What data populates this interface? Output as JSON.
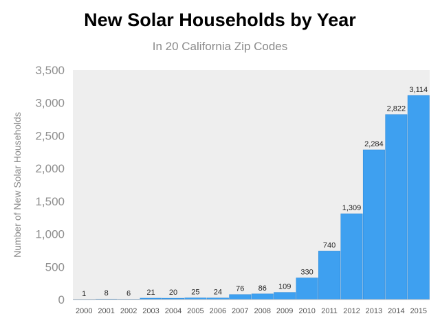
{
  "chart_data": {
    "type": "bar",
    "title": "New Solar Households by Year",
    "subtitle": "In 20 California Zip Codes",
    "xlabel": "",
    "ylabel": "Number of New Solar Households",
    "categories": [
      "2000",
      "2001",
      "2002",
      "2003",
      "2004",
      "2005",
      "2006",
      "2007",
      "2008",
      "2009",
      "2010",
      "2011",
      "2012",
      "2013",
      "2014",
      "2015"
    ],
    "values": [
      1,
      8,
      6,
      21,
      20,
      25,
      24,
      76,
      86,
      109,
      330,
      740,
      1309,
      2284,
      2822,
      3114
    ],
    "data_labels": [
      "1",
      "8",
      "6",
      "21",
      "20",
      "25",
      "24",
      "76",
      "86",
      "109",
      "330",
      "740",
      "1,309",
      "2,284",
      "2,822",
      "3,114"
    ],
    "ylim": [
      0,
      3500
    ],
    "yticks": [
      0,
      500,
      1000,
      1500,
      2000,
      2500,
      3000,
      3500
    ],
    "ytick_labels": [
      "0",
      "500",
      "1,000",
      "1,500",
      "2,000",
      "2,500",
      "3,000",
      "3,500"
    ],
    "grid": false,
    "legend": "none",
    "colors": {
      "bar": "#3ea0f0",
      "bar_edge": "#2a86d6",
      "plot_bg": "#eeeeee",
      "axis": "#b8b8b8"
    }
  }
}
